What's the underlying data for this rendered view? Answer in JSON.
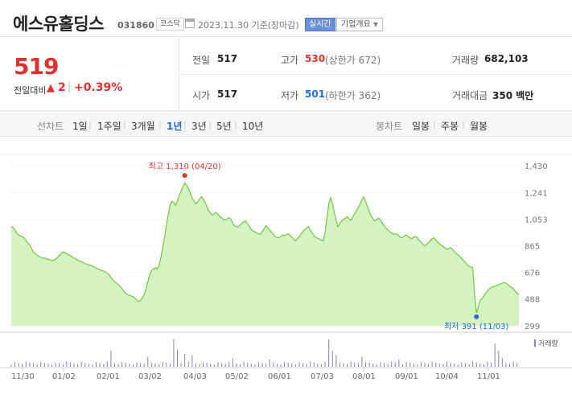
{
  "header": {
    "title": "에스유홀딩스",
    "code": "031860",
    "market": "코스닥",
    "date": "2023.11.30 기준(장마감)",
    "realtime_label": "실시간",
    "company_info_label": "기업개요"
  },
  "summary": {
    "price": "519",
    "change_label": "전일대비",
    "change_abs": "2",
    "change_pct": "+0.39%",
    "prev_close_label": "전일",
    "prev_close": "517",
    "high_label": "고가",
    "high": "530",
    "upper_limit": "(상한가 672)",
    "volume_label": "거래량",
    "volume": "682,103",
    "open_label": "시가",
    "open": "517",
    "low_label": "저가",
    "low": "501",
    "lower_limit": "(하한가 362)",
    "turnover_label": "거래대금",
    "turnover": "350 백만"
  },
  "periods": {
    "line_label": "선차트",
    "line_items": [
      "1일",
      "1주일",
      "3개월",
      "1년",
      "3년",
      "5년",
      "10년"
    ],
    "active": "1년",
    "candle_label": "봉차트",
    "candle_items": [
      "일봉",
      "주봉",
      "월봉"
    ]
  },
  "chart_data": {
    "type": "area",
    "y_ticks": [
      "1,430",
      "1,241",
      "1,053",
      "865",
      "676",
      "488",
      "299"
    ],
    "ylim": [
      299,
      1430
    ],
    "x_ticks": [
      "11/30",
      "01/02",
      "02/01",
      "03/02",
      "04/03",
      "05/02",
      "06/01",
      "07/03",
      "08/01",
      "09/01",
      "10/04",
      "11/01"
    ],
    "max_annotation": "최고 1,310 (04/20)",
    "min_annotation": "최저 391 (11/03)",
    "volume_label": "거래량",
    "colors": {
      "line": "#6dc93d",
      "fill": "#d5f2c3",
      "max_dot": "#e03131",
      "min_dot": "#1c6bd6",
      "volume_bar": "#8a7cb8"
    },
    "series": [
      {
        "values": [
          998,
          995,
          975,
          952,
          940,
          935,
          928,
          918,
          900,
          885,
          870,
          845,
          820,
          808,
          798,
          790,
          782,
          775,
          778,
          775,
          768,
          765,
          760,
          762,
          770,
          782,
          795,
          808,
          820,
          815,
          808,
          800,
          795,
          785,
          778,
          770,
          765,
          758,
          752,
          745,
          738,
          735,
          730,
          725,
          720,
          715,
          708,
          702,
          695,
          690,
          686,
          680,
          670,
          660,
          640,
          625,
          610,
          600,
          590,
          578,
          560,
          540,
          528,
          520,
          515,
          510,
          505,
          495,
          480,
          470,
          478,
          495,
          520,
          560,
          610,
          660,
          690,
          700,
          710,
          700,
          720,
          780,
          850,
          920,
          1000,
          1080,
          1150,
          1180,
          1170,
          1150,
          1180,
          1220,
          1250,
          1280,
          1310,
          1290,
          1270,
          1235,
          1200,
          1180,
          1160,
          1175,
          1195,
          1210,
          1195,
          1170,
          1140,
          1110,
          1095,
          1080,
          1090,
          1100,
          1085,
          1070,
          1060,
          1050,
          1048,
          1055,
          1062,
          1050,
          1025,
          1005,
          1000,
          998,
          1010,
          1025,
          1035,
          1040,
          1020,
          1000,
          980,
          970,
          962,
          955,
          950,
          945,
          965,
          985,
          1005,
          990,
          975,
          960,
          945,
          930,
          925,
          920,
          930,
          940,
          935,
          945,
          950,
          938,
          925,
          910,
          900,
          915,
          930,
          950,
          965,
          980,
          990,
          1000,
          975,
          955,
          935,
          925,
          918,
          910,
          905,
          900,
          960,
          1060,
          1160,
          1205,
          1160,
          1100,
          1045,
          1000,
          1020,
          1040,
          1050,
          1060,
          1070,
          1055,
          1045,
          1070,
          1090,
          1110,
          1135,
          1160,
          1190,
          1210,
          1175,
          1140,
          1105,
          1075,
          1055,
          1040,
          1050,
          1060,
          1045,
          1025,
          1005,
          990,
          975,
          965,
          955,
          950,
          945,
          948,
          935,
          920,
          925,
          935,
          940,
          930,
          920,
          915,
          925,
          930,
          920,
          905,
          890,
          875,
          865,
          875,
          885,
          900,
          915,
          920,
          905,
          890,
          878,
          868,
          860,
          850,
          840,
          845,
          850,
          840,
          825,
          810,
          800,
          790,
          775,
          760,
          748,
          728,
          720,
          715,
          710,
          520,
          391,
          430,
          480,
          490,
          510,
          530,
          545,
          560,
          570,
          575,
          580,
          585,
          590,
          595,
          600,
          605,
          600,
          590,
          580,
          570,
          560,
          545,
          530,
          519
        ]
      }
    ]
  }
}
